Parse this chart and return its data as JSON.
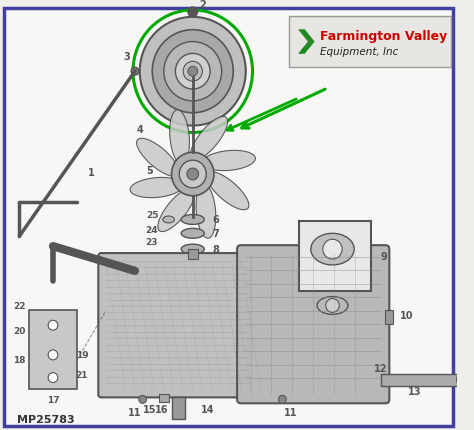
{
  "border_color": "#4040a0",
  "background_color": "#f0eeeb",
  "inner_bg": "#f8f7f5",
  "logo_text_line1": "Farmington Valley",
  "logo_text_line2": "Equipment, Inc",
  "logo_text_color": "#cc0000",
  "logo_subtext_color": "#222222",
  "logo_bg": "#e8e6e2",
  "part_number": "MP25783",
  "green_color": "#00aa00",
  "arrow_color": "#00aa00",
  "line_color": "#555555",
  "dark_color": "#333333"
}
